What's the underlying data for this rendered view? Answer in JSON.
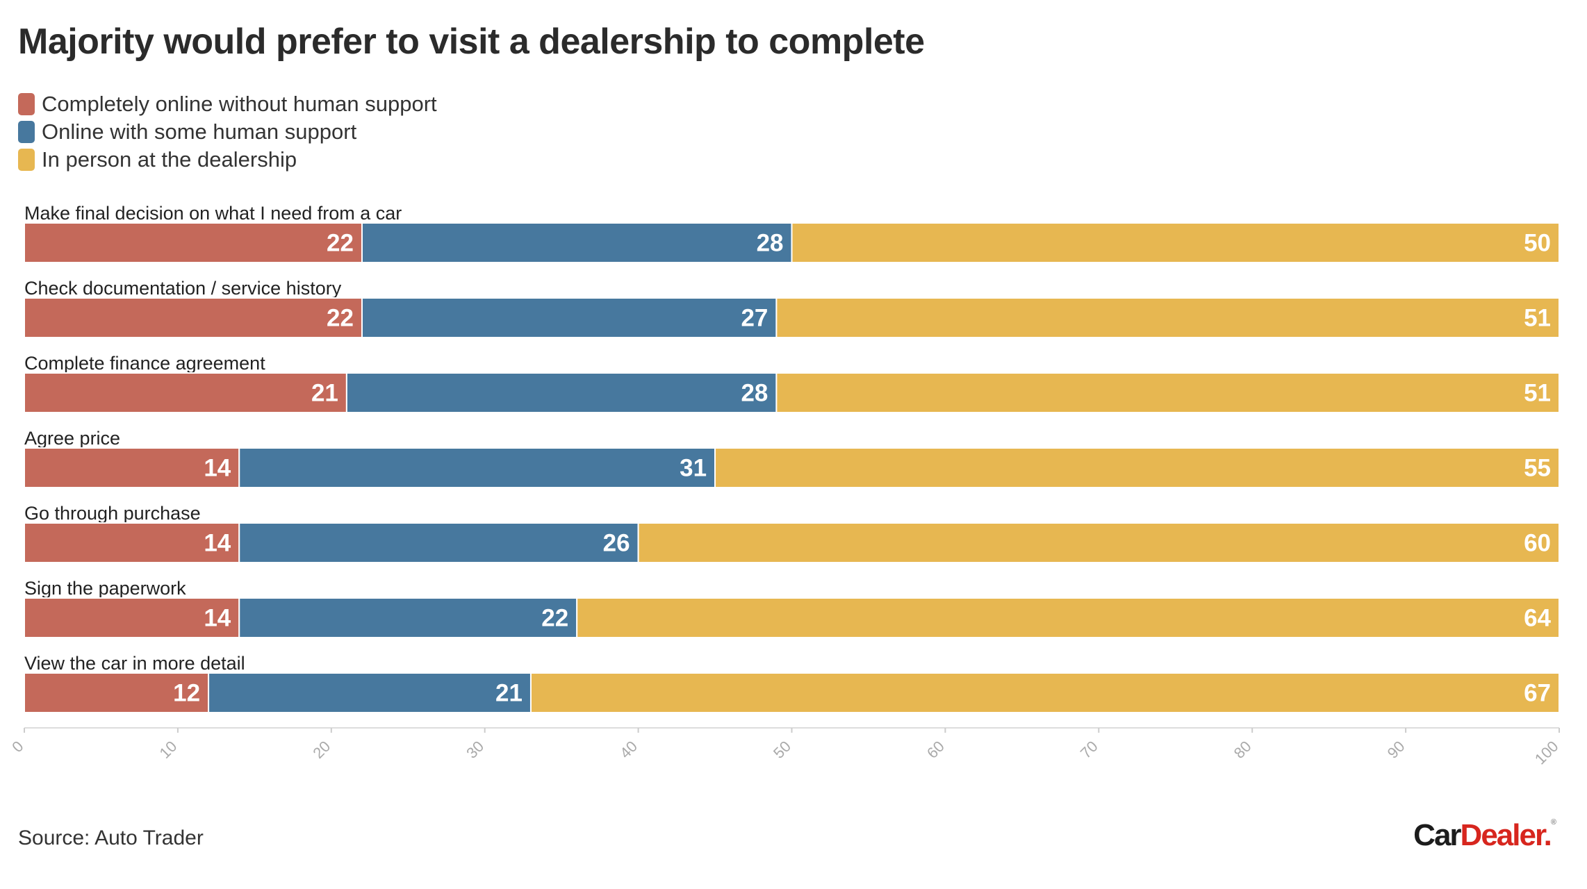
{
  "title": "Majority would prefer to visit a dealership to complete",
  "source": "Source: Auto Trader",
  "logo": {
    "part1": "Car",
    "part2": "Dealer.",
    "mark": "®"
  },
  "legend": [
    {
      "label": "Completely online without human support",
      "color": "#c4695a"
    },
    {
      "label": "Online with some human support",
      "color": "#47789e"
    },
    {
      "label": "In person at the dealership",
      "color": "#e7b751"
    }
  ],
  "chart_data": {
    "type": "bar",
    "orientation": "horizontal",
    "stacked": true,
    "title": "Majority would prefer to visit a dealership to complete",
    "categories": [
      "Make final decision on what I need from a car",
      "Check documentation / service history",
      "Complete finance agreement",
      "Agree price",
      "Go through purchase",
      "Sign the paperwork",
      "View the car in more detail"
    ],
    "series": [
      {
        "name": "Completely online without human support",
        "color": "#c4695a",
        "values": [
          22,
          22,
          21,
          14,
          14,
          14,
          12
        ]
      },
      {
        "name": "Online with some human support",
        "color": "#47789e",
        "values": [
          28,
          27,
          28,
          31,
          26,
          22,
          21
        ]
      },
      {
        "name": "In person at the dealership",
        "color": "#e7b751",
        "values": [
          50,
          51,
          51,
          55,
          60,
          64,
          67
        ]
      }
    ],
    "xlim": [
      0,
      100
    ],
    "xticks": [
      0,
      10,
      20,
      30,
      40,
      50,
      60,
      70,
      80,
      90,
      100
    ],
    "xlabel": "",
    "ylabel": "",
    "grid": false,
    "legend_position": "top-left"
  }
}
